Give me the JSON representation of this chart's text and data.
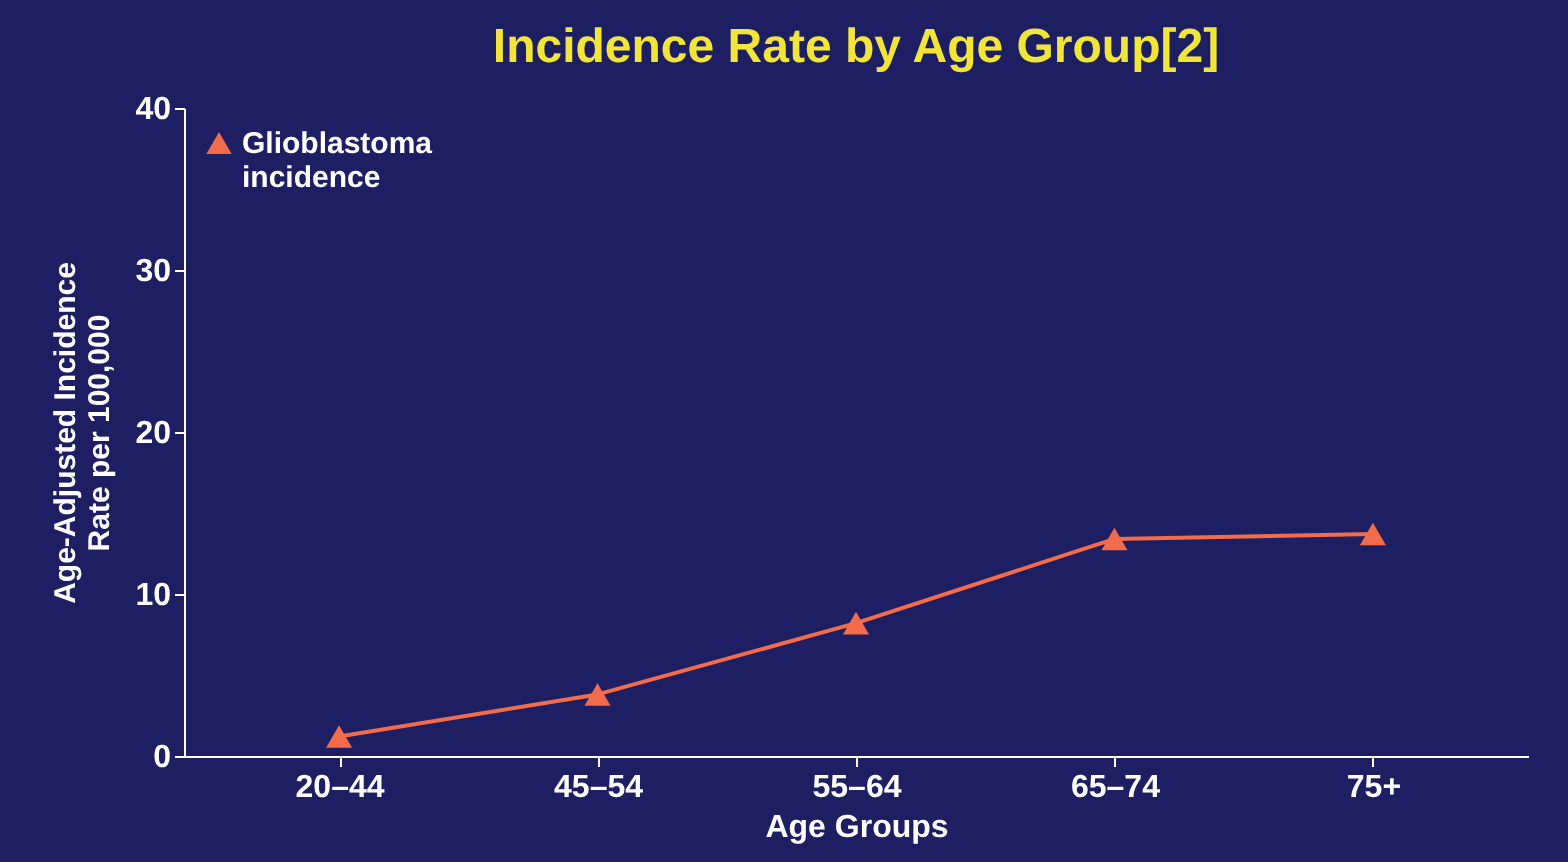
{
  "chart_data": {
    "type": "line",
    "title": "Incidence Rate by Age Group[2]",
    "xlabel": "Age Groups",
    "ylabel": "Age-Adjusted Incidence Rate per 100,000",
    "categories": [
      "20–44",
      "45–54",
      "55–64",
      "65–74",
      "75+"
    ],
    "series": [
      {
        "name": "Glioblastoma incidence",
        "color": "#f26b4a",
        "values": [
          1.2,
          3.8,
          8.2,
          13.4,
          13.7
        ]
      }
    ],
    "ylim": [
      0,
      40
    ],
    "yticks": [
      0,
      10,
      20,
      30,
      40
    ],
    "grid": false,
    "legend": "top left",
    "marker": "triangle",
    "line_style": "solid"
  }
}
